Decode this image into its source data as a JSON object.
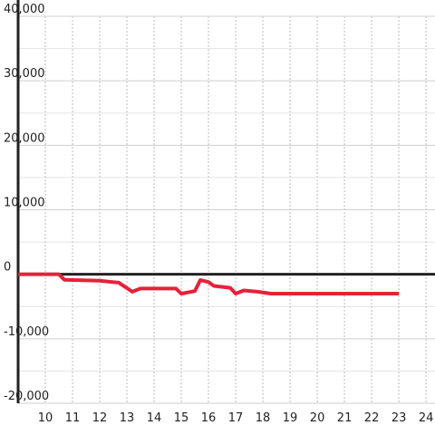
{
  "chart_data": {
    "type": "line",
    "x": [
      9,
      10.5,
      10.7,
      12,
      12.7,
      13.2,
      13.5,
      14.8,
      15,
      15.5,
      15.7,
      16,
      16.2,
      16.8,
      17,
      17.3,
      17.8,
      18.3,
      23
    ],
    "series": [
      {
        "color": "#e8203a",
        "values": [
          0,
          0,
          -850,
          -1000,
          -1300,
          -2700,
          -2200,
          -2200,
          -3000,
          -2600,
          -900,
          -1200,
          -1800,
          -2100,
          -3000,
          -2500,
          -2700,
          -3000,
          -3000
        ]
      }
    ],
    "xlim": [
      9,
      24.33
    ],
    "ylim": [
      -20000,
      40000
    ],
    "xticks": [
      10,
      11,
      12,
      13,
      14,
      15,
      16,
      17,
      18,
      19,
      20,
      21,
      22,
      23,
      24
    ],
    "yticks": [
      {
        "value": -20000,
        "label": "-20,000"
      },
      {
        "value": -10000,
        "label": "-10,000"
      },
      0,
      {
        "value": 10000,
        "label": "10,000"
      },
      {
        "value": 20000,
        "label": "20,000"
      },
      {
        "value": 30000,
        "label": "30,000"
      },
      {
        "value": 40000,
        "label": "40,000"
      }
    ],
    "y_minor_ticks": [
      -15000,
      -5000,
      5000,
      15000,
      25000,
      35000
    ],
    "grid": true
  }
}
